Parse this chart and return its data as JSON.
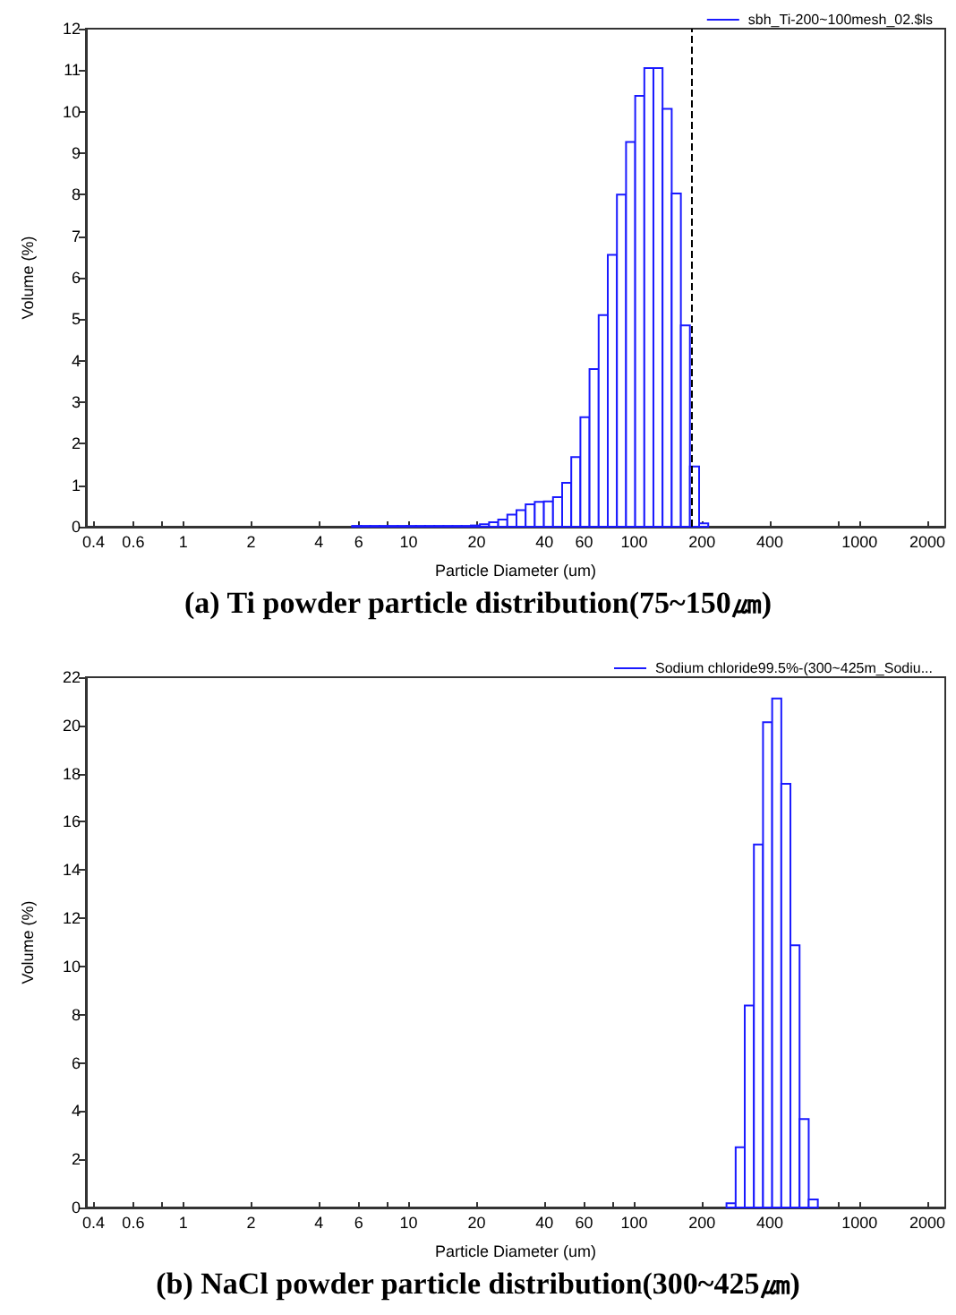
{
  "chart_data": [
    {
      "type": "histogram",
      "title": "(a) Ti powder particle distribution(75~150㎛)",
      "xlabel": "Particle Diameter (um)",
      "ylabel": "Volume (%)",
      "log": "x",
      "legend": "top right",
      "grid": false,
      "bins": [
        5.61,
        6.158,
        6.76,
        7.421,
        8.147,
        8.943,
        9.817,
        10.78,
        11.83,
        12.99,
        14.26,
        15.65,
        17.18,
        18.86,
        20.7,
        22.73,
        24.95,
        27.39,
        30.07,
        33.01,
        36.24,
        39.78,
        43.67,
        47.94,
        52.62,
        57.77,
        63.41,
        69.61,
        76.42,
        83.89,
        92.09,
        101.1,
        111.0,
        121.8,
        133.7,
        146.8,
        161.2,
        176.8,
        194.2,
        213.2
      ],
      "series": [
        {
          "name": "sbh_Ti-200~100mesh_02.$ls",
          "color": "#1a1aff",
          "values": [
            0.02,
            0.02,
            0.02,
            0.02,
            0.02,
            0.02,
            0.02,
            0.02,
            0.02,
            0.02,
            0.02,
            0.02,
            0.02,
            0.03,
            0.06,
            0.11,
            0.17,
            0.29,
            0.4,
            0.54,
            0.6,
            0.61,
            0.71,
            1.06,
            1.68,
            2.64,
            3.8,
            5.1,
            6.55,
            8.0,
            9.27,
            10.38,
            11.05,
            11.05,
            10.07,
            8.03,
            4.85,
            1.45,
            0.08
          ]
        }
      ],
      "xlim": [
        0.37,
        2400
      ],
      "xticks": [
        0.4,
        0.6,
        {
          "value": 0.8,
          "label": null
        },
        1,
        2,
        4,
        6,
        {
          "value": 8,
          "label": null
        },
        10,
        20,
        40,
        60,
        {
          "value": 80,
          "label": null
        },
        100,
        200,
        400,
        {
          "value": 800,
          "label": null
        },
        1000,
        2000
      ],
      "ylim": [
        0,
        12
      ],
      "yticks": [
        0,
        1,
        2,
        3,
        4,
        5,
        6,
        7,
        8,
        9,
        10,
        11,
        12
      ],
      "ref_lines": [
        {
          "axis": "x",
          "value": 180,
          "color": "#000000",
          "line_style": "dashed"
        }
      ]
    },
    {
      "type": "histogram",
      "title": "(b) NaCl powder particle distribution(300~425㎛)",
      "xlabel": "Particle Diameter (um)",
      "ylabel": "Volume (%)",
      "log": "x",
      "legend": "top right",
      "grid": false,
      "bins": [
        256.9,
        282.1,
        309.6,
        339.9,
        373.1,
        409.6,
        449.7,
        493.6,
        541.9,
        594.9,
        653.0
      ],
      "series": [
        {
          "name": "Sodium chloride99.5%-(300~425m_Sodiu...",
          "color": "#1a1aff",
          "values": [
            0.18,
            2.5,
            8.38,
            15.06,
            20.13,
            21.12,
            17.58,
            10.88,
            3.67,
            0.33
          ]
        }
      ],
      "xlim": [
        0.37,
        2400
      ],
      "xticks": [
        0.4,
        0.6,
        {
          "value": 0.8,
          "label": null
        },
        1,
        2,
        4,
        6,
        {
          "value": 8,
          "label": null
        },
        10,
        20,
        40,
        60,
        {
          "value": 80,
          "label": null
        },
        100,
        200,
        400,
        {
          "value": 800,
          "label": null
        },
        1000,
        2000
      ],
      "ylim": [
        0,
        22
      ],
      "yticks": [
        0,
        2,
        4,
        6,
        8,
        10,
        12,
        14,
        16,
        18,
        20,
        22
      ]
    }
  ]
}
